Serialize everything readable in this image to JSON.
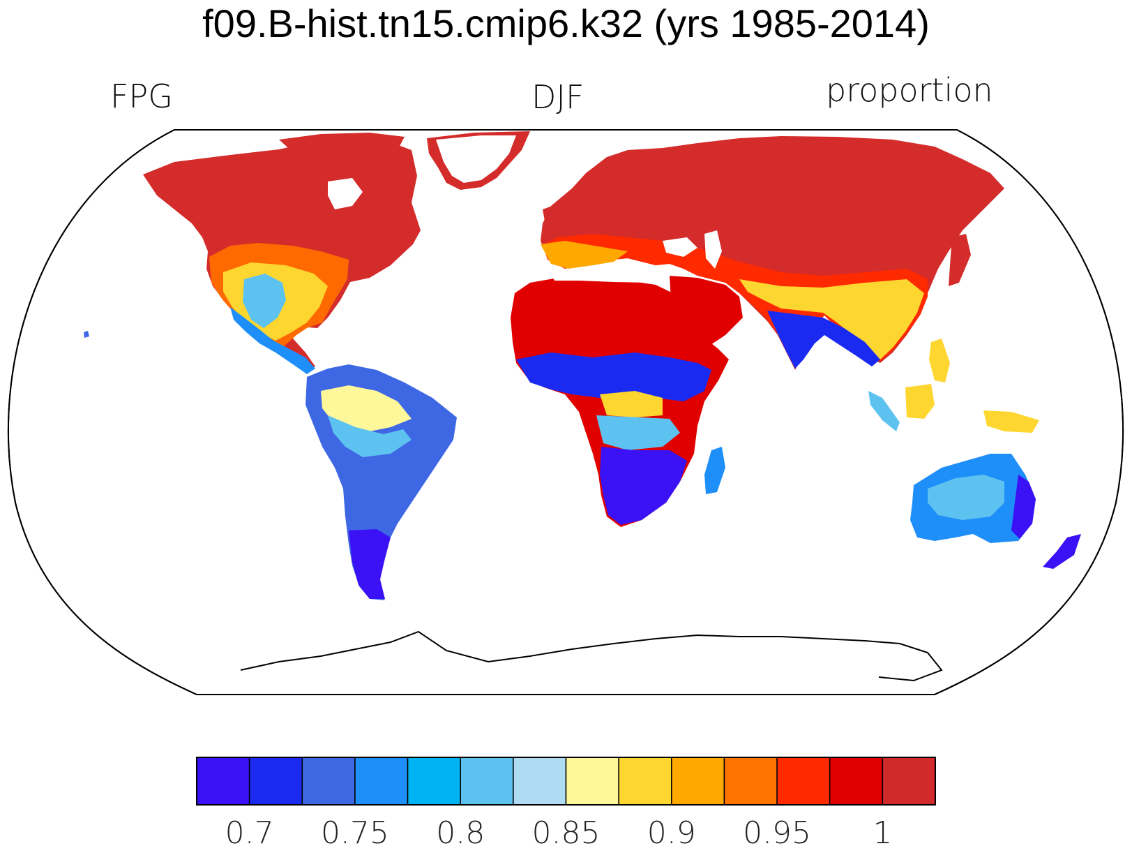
{
  "title": "f09.B-hist.tn15.cmip6.k32 (yrs 1985-2014)",
  "left_label": "FPG",
  "center_label": "DJF",
  "right_label": "proportion",
  "colorbar": {
    "colors": [
      "#3a12f5",
      "#1b2af0",
      "#3e67e4",
      "#1e8ff8",
      "#00b4f3",
      "#5ec2f0",
      "#b0dcf3",
      "#fff89a",
      "#fed630",
      "#fea800",
      "#ff7300",
      "#ff2a00",
      "#e10000",
      "#d02a2a"
    ],
    "tick_labels": [
      "0.7",
      "0.75",
      "0.8",
      "0.85",
      "0.9",
      "0.95",
      "1"
    ]
  }
}
